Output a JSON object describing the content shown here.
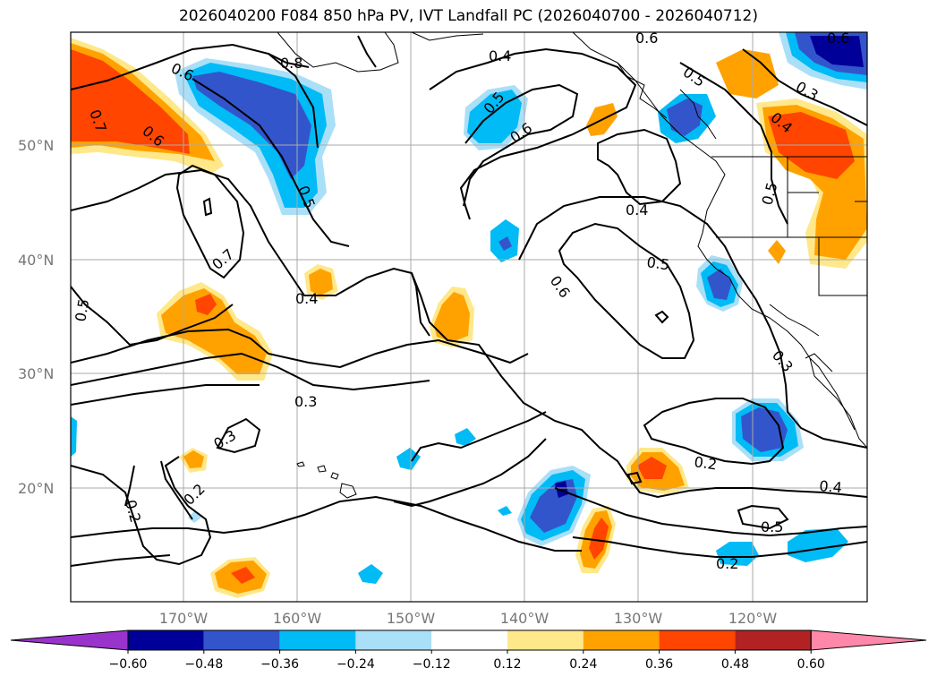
{
  "title": "2026040200 F084 850 hPa PV, IVT Landfall PC (2026040700 - 2026040712)",
  "axes": {
    "lat_labels": [
      "50°N",
      "40°N",
      "30°N",
      "20°N"
    ],
    "lon_labels": [
      "170°W",
      "160°W",
      "150°W",
      "140°W",
      "130°W",
      "120°W"
    ]
  },
  "contour_labels": [
    "0.6",
    "0.8",
    "0.6",
    "0.7",
    "0.6",
    "0.5",
    "0.4",
    "0.5",
    "0.6",
    "0.6",
    "0.5",
    "0.3",
    "0.4",
    "0.5",
    "0.4",
    "0.7",
    "0.4",
    "0.5",
    "0.5",
    "0.6",
    "0.3",
    "0.3",
    "0.3",
    "0.2",
    "0.2",
    "0.2",
    "0.4",
    "0.5",
    "0.2"
  ],
  "colorbar": {
    "ticks": [
      "−0.60",
      "−0.48",
      "−0.36",
      "−0.24",
      "−0.12",
      "0.12",
      "0.24",
      "0.36",
      "0.48",
      "0.60"
    ],
    "colors": [
      "#9933cc",
      "#000099",
      "#3355cc",
      "#00bbf5",
      "#aadff8",
      "#ffffff",
      "#ffe88a",
      "#ffa200",
      "#ff4500",
      "#b22222",
      "#ff88aa"
    ]
  }
}
